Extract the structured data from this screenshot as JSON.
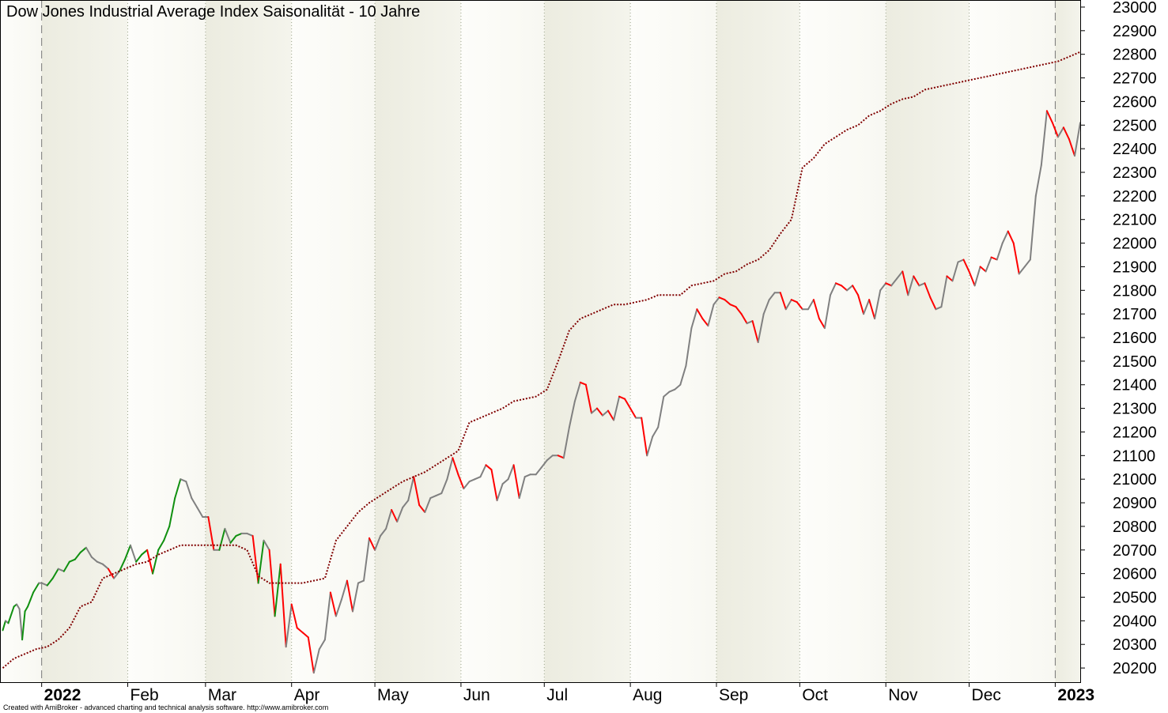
{
  "chart_data": {
    "type": "line",
    "title": "Dow Jones Industrial Average Index  Saisonalität - 10 Jahre",
    "footer": "Created with AmiBroker - advanced charting and technical analysis software. http://www.amibroker.com",
    "y_range": [
      20140,
      23030
    ],
    "y_ticks": [
      20200,
      20300,
      20400,
      20500,
      20600,
      20700,
      20800,
      20900,
      21000,
      21100,
      21200,
      21300,
      21400,
      21500,
      21600,
      21700,
      21800,
      21900,
      22000,
      22100,
      22200,
      22300,
      22400,
      22500,
      22600,
      22700,
      22800,
      22900,
      23000
    ],
    "x_range": [
      -15,
      374
    ],
    "months": [
      {
        "label": "Feb",
        "day": 31
      },
      {
        "label": "Mar",
        "day": 59
      },
      {
        "label": "Apr",
        "day": 90
      },
      {
        "label": "May",
        "day": 120
      },
      {
        "label": "Jun",
        "day": 151
      },
      {
        "label": "Jul",
        "day": 181
      },
      {
        "label": "Aug",
        "day": 212
      },
      {
        "label": "Sep",
        "day": 243
      },
      {
        "label": "Oct",
        "day": 273
      },
      {
        "label": "Nov",
        "day": 304
      },
      {
        "label": "Dec",
        "day": 334
      }
    ],
    "years": [
      {
        "label": "2022",
        "day": 0
      },
      {
        "label": "2023",
        "day": 365
      }
    ],
    "colors": {
      "up": "#109010",
      "neutral": "#808080",
      "down": "#ff0000",
      "average": "#800000",
      "band_light": "#f8f8f2",
      "band_dark": "#ecece0"
    },
    "series": [
      {
        "style": "seasonal",
        "points": [
          [
            -14,
            20360
          ],
          [
            -13,
            20400
          ],
          [
            -12,
            20390
          ],
          [
            -10,
            20460
          ],
          [
            -9,
            20470
          ],
          [
            -8,
            20450
          ],
          [
            -7,
            20320
          ],
          [
            -6,
            20440
          ],
          [
            -5,
            20460
          ],
          [
            -4,
            20490
          ],
          [
            -3,
            20520
          ],
          [
            -1,
            20560
          ],
          [
            0,
            20560
          ],
          [
            2,
            20550
          ],
          [
            4,
            20580
          ],
          [
            6,
            20620
          ],
          [
            8,
            20610
          ],
          [
            10,
            20650
          ],
          [
            12,
            20660
          ],
          [
            14,
            20690
          ],
          [
            16,
            20710
          ],
          [
            18,
            20670
          ],
          [
            20,
            20650
          ],
          [
            22,
            20640
          ],
          [
            24,
            20620
          ],
          [
            26,
            20580
          ],
          [
            28,
            20610
          ],
          [
            30,
            20660
          ],
          [
            32,
            20720
          ],
          [
            34,
            20650
          ],
          [
            36,
            20680
          ],
          [
            38,
            20700
          ],
          [
            40,
            20600
          ],
          [
            42,
            20700
          ],
          [
            44,
            20740
          ],
          [
            46,
            20800
          ],
          [
            48,
            20920
          ],
          [
            50,
            21000
          ],
          [
            52,
            20990
          ],
          [
            54,
            20920
          ],
          [
            56,
            20880
          ],
          [
            58,
            20840
          ],
          [
            60,
            20840
          ],
          [
            62,
            20700
          ],
          [
            64,
            20700
          ],
          [
            66,
            20790
          ],
          [
            68,
            20730
          ],
          [
            70,
            20760
          ],
          [
            72,
            20770
          ],
          [
            74,
            20770
          ],
          [
            76,
            20760
          ],
          [
            78,
            20560
          ],
          [
            80,
            20740
          ],
          [
            82,
            20700
          ],
          [
            84,
            20420
          ],
          [
            86,
            20640
          ],
          [
            88,
            20290
          ],
          [
            90,
            20470
          ],
          [
            92,
            20370
          ],
          [
            94,
            20350
          ],
          [
            96,
            20330
          ],
          [
            98,
            20180
          ],
          [
            100,
            20280
          ],
          [
            102,
            20320
          ],
          [
            104,
            20520
          ],
          [
            106,
            20420
          ],
          [
            108,
            20490
          ],
          [
            110,
            20570
          ],
          [
            112,
            20440
          ],
          [
            114,
            20560
          ],
          [
            116,
            20570
          ],
          [
            118,
            20750
          ],
          [
            120,
            20700
          ],
          [
            122,
            20760
          ],
          [
            124,
            20790
          ],
          [
            126,
            20870
          ],
          [
            128,
            20820
          ],
          [
            130,
            20880
          ],
          [
            132,
            20910
          ],
          [
            134,
            21010
          ],
          [
            136,
            20890
          ],
          [
            138,
            20860
          ],
          [
            140,
            20920
          ],
          [
            142,
            20930
          ],
          [
            144,
            20940
          ],
          [
            146,
            21000
          ],
          [
            148,
            21090
          ],
          [
            150,
            21020
          ],
          [
            152,
            20960
          ],
          [
            154,
            20990
          ],
          [
            156,
            21000
          ],
          [
            158,
            21010
          ],
          [
            160,
            21060
          ],
          [
            162,
            21040
          ],
          [
            164,
            20910
          ],
          [
            166,
            20980
          ],
          [
            168,
            21000
          ],
          [
            170,
            21060
          ],
          [
            172,
            20920
          ],
          [
            174,
            21010
          ],
          [
            176,
            21020
          ],
          [
            178,
            21020
          ],
          [
            180,
            21050
          ],
          [
            182,
            21080
          ],
          [
            184,
            21100
          ],
          [
            186,
            21100
          ],
          [
            188,
            21090
          ],
          [
            190,
            21220
          ],
          [
            192,
            21330
          ],
          [
            194,
            21410
          ],
          [
            196,
            21400
          ],
          [
            198,
            21280
          ],
          [
            200,
            21300
          ],
          [
            202,
            21270
          ],
          [
            204,
            21290
          ],
          [
            206,
            21250
          ],
          [
            208,
            21350
          ],
          [
            210,
            21340
          ],
          [
            212,
            21300
          ],
          [
            214,
            21260
          ],
          [
            216,
            21260
          ],
          [
            218,
            21100
          ],
          [
            220,
            21180
          ],
          [
            222,
            21220
          ],
          [
            224,
            21350
          ],
          [
            226,
            21370
          ],
          [
            228,
            21380
          ],
          [
            230,
            21400
          ],
          [
            232,
            21480
          ],
          [
            234,
            21640
          ],
          [
            236,
            21720
          ],
          [
            238,
            21680
          ],
          [
            240,
            21650
          ],
          [
            242,
            21740
          ],
          [
            244,
            21770
          ],
          [
            246,
            21760
          ],
          [
            248,
            21740
          ],
          [
            250,
            21730
          ],
          [
            252,
            21700
          ],
          [
            254,
            21660
          ],
          [
            256,
            21670
          ],
          [
            258,
            21580
          ],
          [
            260,
            21700
          ],
          [
            262,
            21760
          ],
          [
            264,
            21790
          ],
          [
            266,
            21790
          ],
          [
            268,
            21720
          ],
          [
            270,
            21760
          ],
          [
            272,
            21750
          ],
          [
            274,
            21720
          ],
          [
            276,
            21720
          ],
          [
            278,
            21760
          ],
          [
            280,
            21680
          ],
          [
            282,
            21640
          ],
          [
            284,
            21780
          ],
          [
            286,
            21830
          ],
          [
            288,
            21820
          ],
          [
            290,
            21800
          ],
          [
            292,
            21820
          ],
          [
            294,
            21780
          ],
          [
            296,
            21700
          ],
          [
            298,
            21760
          ],
          [
            300,
            21680
          ],
          [
            302,
            21800
          ],
          [
            304,
            21830
          ],
          [
            306,
            21820
          ],
          [
            308,
            21850
          ],
          [
            310,
            21880
          ],
          [
            312,
            21780
          ],
          [
            314,
            21860
          ],
          [
            316,
            21820
          ],
          [
            318,
            21830
          ],
          [
            320,
            21770
          ],
          [
            322,
            21720
          ],
          [
            324,
            21730
          ],
          [
            326,
            21860
          ],
          [
            328,
            21840
          ],
          [
            330,
            21920
          ],
          [
            332,
            21930
          ],
          [
            334,
            21880
          ],
          [
            336,
            21820
          ],
          [
            338,
            21900
          ],
          [
            340,
            21880
          ],
          [
            342,
            21940
          ],
          [
            344,
            21930
          ],
          [
            346,
            22000
          ],
          [
            348,
            22050
          ],
          [
            350,
            22000
          ],
          [
            352,
            21870
          ],
          [
            354,
            21900
          ],
          [
            356,
            21930
          ],
          [
            358,
            22200
          ],
          [
            360,
            22330
          ],
          [
            362,
            22560
          ],
          [
            364,
            22510
          ],
          [
            366,
            22450
          ],
          [
            368,
            22490
          ],
          [
            370,
            22440
          ],
          [
            372,
            22370
          ],
          [
            374,
            22510
          ]
        ]
      },
      {
        "style": "average",
        "points": [
          [
            -14,
            20200
          ],
          [
            -10,
            20240
          ],
          [
            -6,
            20260
          ],
          [
            -2,
            20280
          ],
          [
            2,
            20290
          ],
          [
            6,
            20320
          ],
          [
            10,
            20370
          ],
          [
            14,
            20460
          ],
          [
            18,
            20480
          ],
          [
            22,
            20580
          ],
          [
            26,
            20600
          ],
          [
            30,
            20620
          ],
          [
            34,
            20640
          ],
          [
            38,
            20650
          ],
          [
            42,
            20680
          ],
          [
            46,
            20700
          ],
          [
            50,
            20720
          ],
          [
            54,
            20720
          ],
          [
            58,
            20720
          ],
          [
            62,
            20720
          ],
          [
            66,
            20720
          ],
          [
            70,
            20720
          ],
          [
            74,
            20700
          ],
          [
            78,
            20590
          ],
          [
            82,
            20560
          ],
          [
            86,
            20560
          ],
          [
            90,
            20560
          ],
          [
            94,
            20560
          ],
          [
            98,
            20570
          ],
          [
            102,
            20580
          ],
          [
            106,
            20740
          ],
          [
            110,
            20800
          ],
          [
            114,
            20860
          ],
          [
            118,
            20900
          ],
          [
            122,
            20930
          ],
          [
            126,
            20960
          ],
          [
            130,
            20990
          ],
          [
            134,
            21010
          ],
          [
            138,
            21030
          ],
          [
            142,
            21060
          ],
          [
            146,
            21090
          ],
          [
            150,
            21120
          ],
          [
            154,
            21240
          ],
          [
            158,
            21260
          ],
          [
            162,
            21280
          ],
          [
            166,
            21300
          ],
          [
            170,
            21330
          ],
          [
            174,
            21340
          ],
          [
            178,
            21350
          ],
          [
            182,
            21380
          ],
          [
            186,
            21500
          ],
          [
            190,
            21630
          ],
          [
            194,
            21680
          ],
          [
            198,
            21700
          ],
          [
            202,
            21720
          ],
          [
            206,
            21740
          ],
          [
            210,
            21740
          ],
          [
            214,
            21750
          ],
          [
            218,
            21760
          ],
          [
            222,
            21780
          ],
          [
            226,
            21780
          ],
          [
            230,
            21780
          ],
          [
            234,
            21820
          ],
          [
            238,
            21830
          ],
          [
            242,
            21840
          ],
          [
            246,
            21870
          ],
          [
            250,
            21880
          ],
          [
            254,
            21910
          ],
          [
            258,
            21930
          ],
          [
            262,
            21970
          ],
          [
            266,
            22040
          ],
          [
            270,
            22100
          ],
          [
            274,
            22320
          ],
          [
            278,
            22360
          ],
          [
            282,
            22420
          ],
          [
            286,
            22450
          ],
          [
            290,
            22480
          ],
          [
            294,
            22500
          ],
          [
            298,
            22540
          ],
          [
            302,
            22560
          ],
          [
            306,
            22590
          ],
          [
            310,
            22610
          ],
          [
            314,
            22620
          ],
          [
            318,
            22650
          ],
          [
            322,
            22660
          ],
          [
            326,
            22670
          ],
          [
            330,
            22680
          ],
          [
            334,
            22690
          ],
          [
            338,
            22700
          ],
          [
            342,
            22710
          ],
          [
            346,
            22720
          ],
          [
            350,
            22730
          ],
          [
            354,
            22740
          ],
          [
            358,
            22750
          ],
          [
            362,
            22760
          ],
          [
            366,
            22770
          ],
          [
            370,
            22790
          ],
          [
            374,
            22810
          ]
        ]
      }
    ],
    "grid": "vertical dotted month lines, dashed year lines",
    "legend": "none"
  }
}
